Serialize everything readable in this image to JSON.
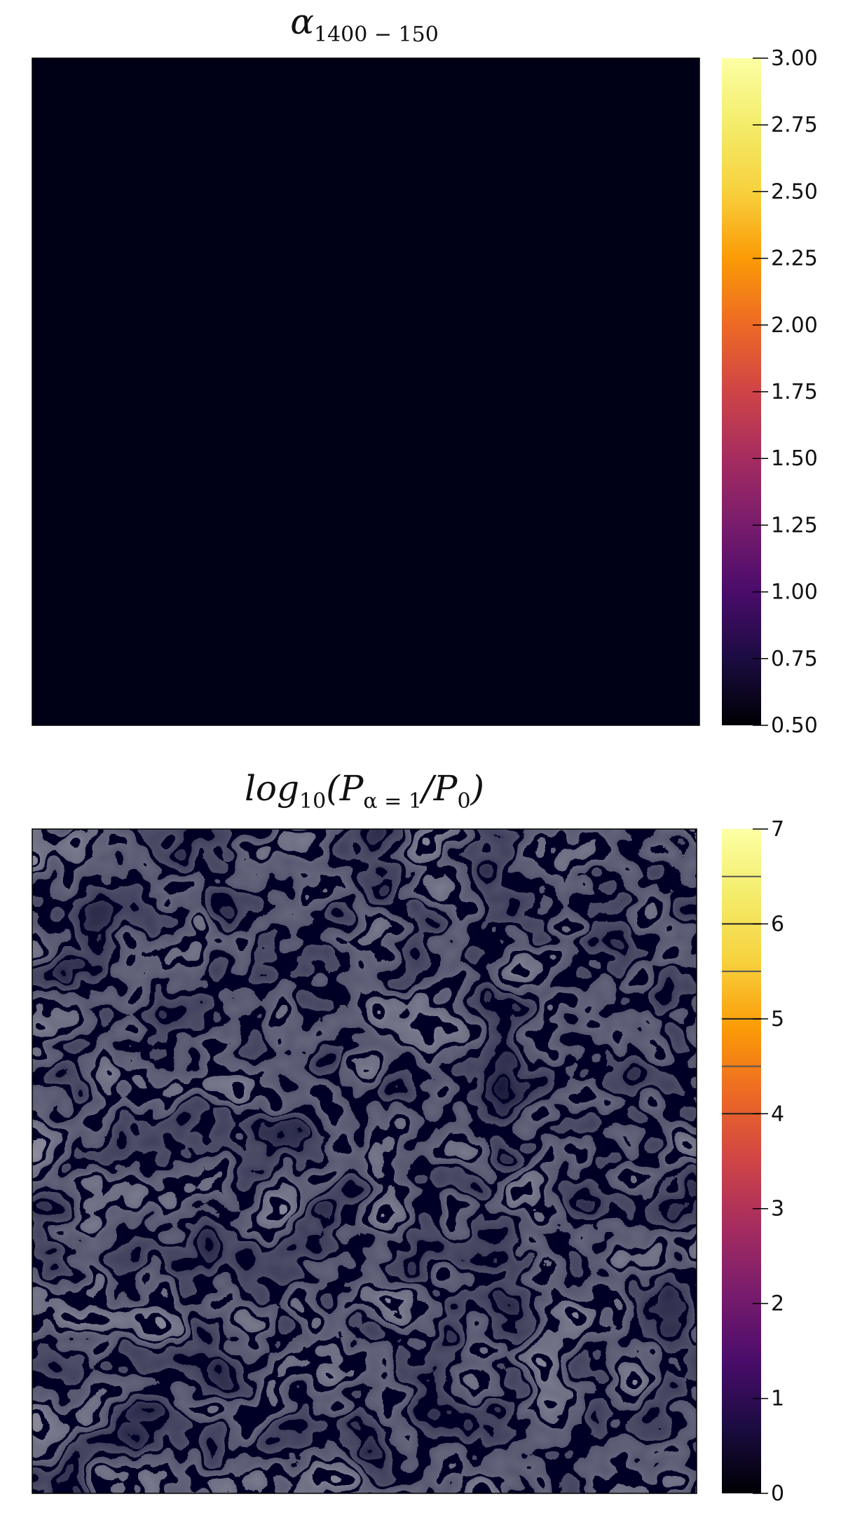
{
  "chart_data": [
    {
      "type": "heatmap",
      "title_main": "α",
      "title_sub": "1400 − 150",
      "colormap": "inferno",
      "colorbar": {
        "min": 0.5,
        "max": 3.0,
        "ticks": [
          0.5,
          0.75,
          1.0,
          1.25,
          1.5,
          1.75,
          2.0,
          2.25,
          2.5,
          2.75,
          3.0
        ],
        "tick_labels": [
          "0.50",
          "0.75",
          "1.00",
          "1.25",
          "1.50",
          "1.75",
          "2.00",
          "2.25",
          "2.50",
          "2.75",
          "3.00"
        ]
      },
      "axes_visible": false,
      "grid": false
    },
    {
      "type": "heatmap",
      "title_main": "log",
      "title_sub": "10",
      "title_rest": "(P",
      "title_sub2": "α = 1",
      "title_rest2": "/P",
      "title_sub3": "0",
      "title_end": ")",
      "colormap": "inferno",
      "overlay": "gray contour lines",
      "colorbar": {
        "min": 0,
        "max": 7,
        "ticks": [
          0,
          1,
          2,
          3,
          4,
          5,
          6,
          7
        ],
        "tick_labels": [
          "0",
          "1",
          "2",
          "3",
          "4",
          "5",
          "6",
          "7"
        ],
        "level_lines": [
          4,
          4.5,
          5,
          5.5,
          6,
          6.5
        ]
      },
      "axes_visible": false,
      "grid": false
    }
  ]
}
